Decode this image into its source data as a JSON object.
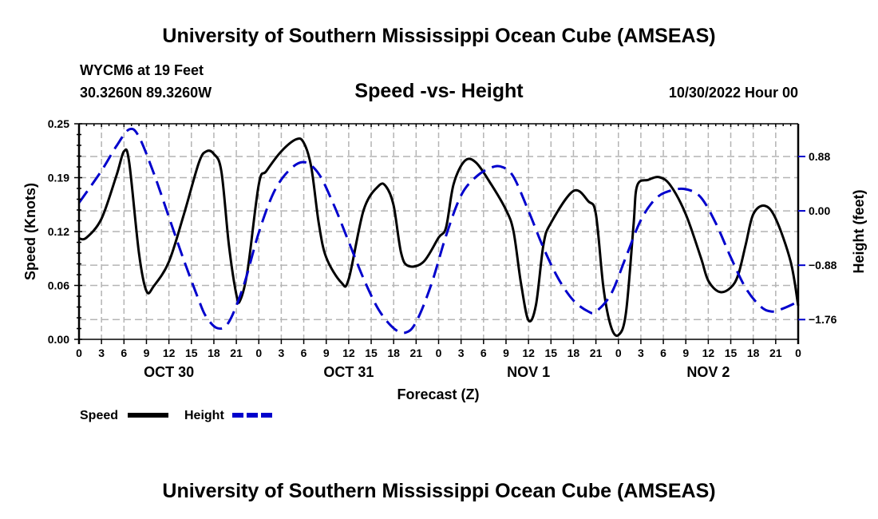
{
  "header": {
    "title_top": "University of Southern Mississippi Ocean Cube (AMSEAS)",
    "station": "WYCM6 at 19 Feet",
    "coords": "30.3260N  89.3260W",
    "datetime": "10/30/2022 Hour 00",
    "title_bottom": "University of Southern Mississippi Ocean Cube (AMSEAS)"
  },
  "colors": {
    "speed": "#000000",
    "height": "#0000cc",
    "grid": "#b4b4b4"
  },
  "chart_data": {
    "type": "line",
    "title": "Speed -vs- Height",
    "xlabel": "Forecast (Z)",
    "ylabel": "Speed (Knots)",
    "y2label": "Height (feet)",
    "xlim": [
      0,
      96
    ],
    "ylim": [
      0,
      0.25
    ],
    "y2lim": [
      -2.08,
      1.41
    ],
    "grid": true,
    "legend_position": "bottom-left",
    "x_tick_labels": [
      "0",
      "3",
      "6",
      "9",
      "12",
      "15",
      "18",
      "21",
      "0",
      "3",
      "6",
      "9",
      "12",
      "15",
      "18",
      "21",
      "0",
      "3",
      "6",
      "9",
      "12",
      "15",
      "18",
      "21",
      "0",
      "3",
      "6",
      "9",
      "12",
      "15",
      "18",
      "21",
      "0"
    ],
    "x_tick_hours": [
      0,
      3,
      6,
      9,
      12,
      15,
      18,
      21,
      24,
      27,
      30,
      33,
      36,
      39,
      42,
      45,
      48,
      51,
      54,
      57,
      60,
      63,
      66,
      69,
      72,
      75,
      78,
      81,
      84,
      87,
      90,
      93,
      96
    ],
    "day_labels": [
      {
        "label": "OCT 30",
        "hour": 12
      },
      {
        "label": "OCT 31",
        "hour": 36
      },
      {
        "label": "NOV 1",
        "hour": 60
      },
      {
        "label": "NOV 2",
        "hour": 84
      }
    ],
    "y_ticks": [
      {
        "value": 0.0,
        "label": "0.00"
      },
      {
        "value": 0.0625,
        "label": "0.06"
      },
      {
        "value": 0.125,
        "label": "0.12"
      },
      {
        "value": 0.1875,
        "label": "0.19"
      },
      {
        "value": 0.25,
        "label": "0.25"
      }
    ],
    "y2_ticks": [
      {
        "value": 0.88,
        "label": "0.88"
      },
      {
        "value": 0.0,
        "label": "0.00"
      },
      {
        "value": -0.88,
        "label": "−0.88"
      },
      {
        "value": -1.76,
        "label": "−1.76"
      }
    ],
    "series": [
      {
        "name": "Speed",
        "axis": "left",
        "style": "solid",
        "x": [
          0,
          1,
          3,
          5,
          6,
          6.7,
          8,
          9,
          10,
          12,
          14,
          16,
          17,
          18,
          19,
          20,
          21,
          21.5,
          22.5,
          24,
          25,
          27,
          29,
          30,
          31,
          32,
          33,
          35,
          36,
          38,
          40,
          41,
          42,
          43,
          44,
          46,
          48,
          49,
          50,
          51.5,
          53,
          55,
          57,
          58,
          59,
          60,
          61,
          62,
          63,
          66,
          68,
          69,
          70,
          71,
          72,
          73,
          74,
          74.5,
          76,
          77.5,
          79,
          81,
          83,
          84,
          85.5,
          87,
          88,
          89,
          90,
          91.5,
          93,
          95,
          96
        ],
        "values": [
          0.117,
          0.118,
          0.14,
          0.19,
          0.218,
          0.205,
          0.1,
          0.056,
          0.062,
          0.09,
          0.145,
          0.205,
          0.218,
          0.215,
          0.195,
          0.11,
          0.052,
          0.045,
          0.08,
          0.18,
          0.195,
          0.218,
          0.232,
          0.228,
          0.2,
          0.135,
          0.095,
          0.066,
          0.07,
          0.15,
          0.178,
          0.177,
          0.155,
          0.1,
          0.085,
          0.09,
          0.118,
          0.13,
          0.18,
          0.207,
          0.205,
          0.18,
          0.15,
          0.125,
          0.065,
          0.022,
          0.04,
          0.11,
          0.135,
          0.172,
          0.16,
          0.145,
          0.06,
          0.015,
          0.005,
          0.03,
          0.13,
          0.178,
          0.185,
          0.188,
          0.178,
          0.145,
          0.095,
          0.068,
          0.055,
          0.06,
          0.075,
          0.11,
          0.145,
          0.155,
          0.14,
          0.09,
          0.039
        ]
      },
      {
        "name": "Height",
        "axis": "right",
        "style": "dashed",
        "x": [
          0,
          3,
          5,
          6.7,
          8,
          10,
          12,
          14,
          16,
          17,
          18.5,
          20,
          22,
          24,
          26,
          28,
          30,
          32,
          34,
          36,
          38,
          40,
          42,
          43.6,
          45,
          47,
          49,
          51,
          53,
          55,
          56.5,
          58,
          60,
          62,
          64,
          66,
          68,
          69,
          71,
          73,
          75,
          77,
          79,
          81,
          83,
          85,
          87,
          89,
          91,
          92.5,
          94,
          96
        ],
        "values": [
          0.13,
          0.65,
          1.05,
          1.32,
          1.2,
          0.6,
          -0.1,
          -0.8,
          -1.45,
          -1.72,
          -1.9,
          -1.8,
          -1.2,
          -0.35,
          0.3,
          0.65,
          0.79,
          0.6,
          0.1,
          -0.5,
          -1.1,
          -1.6,
          -1.9,
          -1.97,
          -1.8,
          -1.2,
          -0.4,
          0.25,
          0.55,
          0.7,
          0.71,
          0.55,
          0.0,
          -0.6,
          -1.1,
          -1.45,
          -1.63,
          -1.63,
          -1.35,
          -0.75,
          -0.15,
          0.2,
          0.33,
          0.35,
          0.22,
          -0.2,
          -0.75,
          -1.25,
          -1.55,
          -1.63,
          -1.58,
          -1.47
        ]
      }
    ],
    "legend": [
      {
        "label": "Speed",
        "series": "Speed"
      },
      {
        "label": "Height",
        "series": "Height"
      }
    ]
  }
}
